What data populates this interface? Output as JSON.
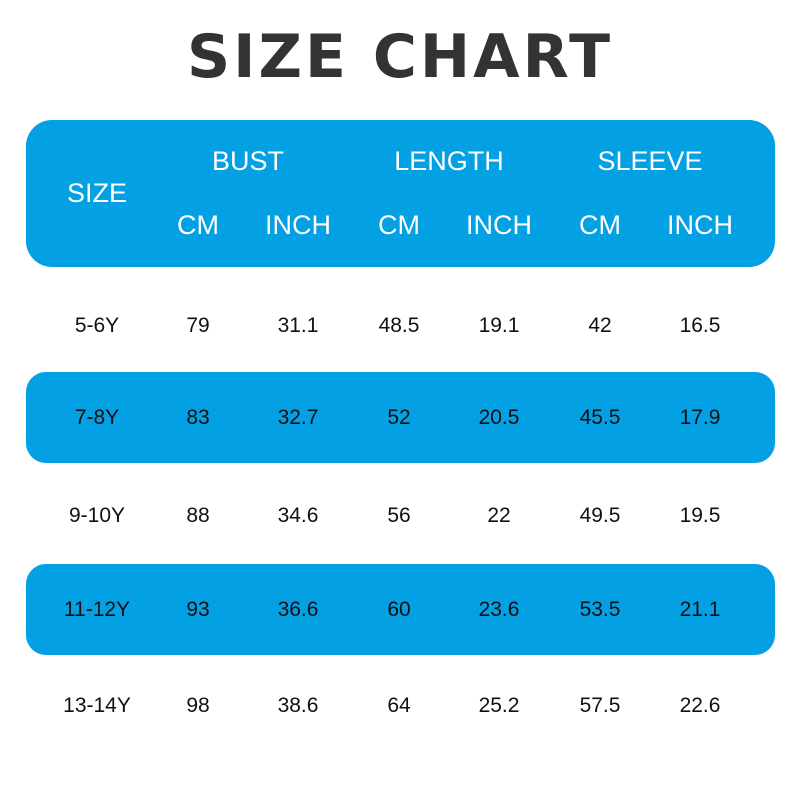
{
  "title": "SIZE CHART",
  "header": {
    "size": "SIZE",
    "groups": [
      "BUST",
      "LENGTH",
      "SLEEVE"
    ],
    "units": [
      "CM",
      "INCH",
      "CM",
      "INCH",
      "CM",
      "INCH"
    ]
  },
  "row_color": "#03a0e4",
  "rows": [
    [
      "5-6Y",
      "79",
      "31.1",
      "48.5",
      "19.1",
      "42",
      "16.5"
    ],
    [
      "7-8Y",
      "83",
      "32.7",
      "52",
      "20.5",
      "45.5",
      "17.9"
    ],
    [
      "9-10Y",
      "88",
      "34.6",
      "56",
      "22",
      "49.5",
      "19.5"
    ],
    [
      "11-12Y",
      "93",
      "36.6",
      "60",
      "23.6",
      "53.5",
      "21.1"
    ],
    [
      "13-14Y",
      "98",
      "38.6",
      "64",
      "25.2",
      "57.5",
      "22.6"
    ]
  ]
}
